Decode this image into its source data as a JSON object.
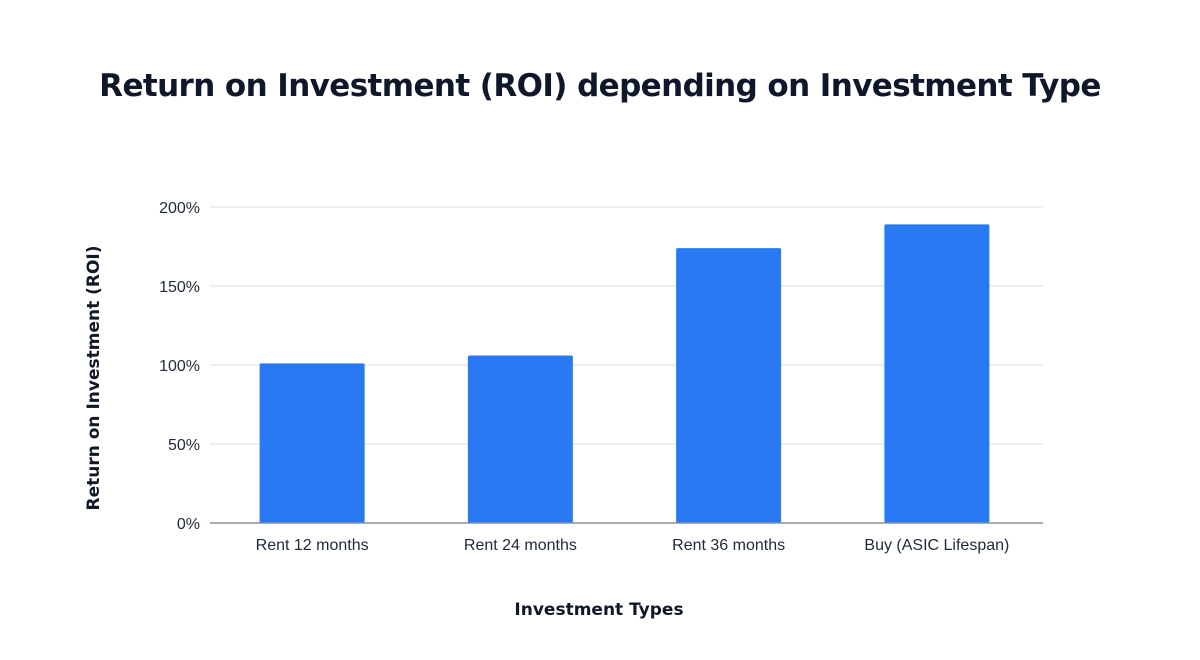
{
  "chart_data": {
    "type": "bar",
    "title": "Return on Investment (ROI) depending on Investment Type",
    "xlabel": "Investment Types",
    "ylabel": "Return on Investment (ROI)",
    "categories": [
      "Rent 12 months",
      "Rent 24 months",
      "Rent 36 months",
      "Buy (ASIC Lifespan)"
    ],
    "values": [
      101,
      106,
      174,
      189
    ],
    "value_unit": "%",
    "ylim": [
      0,
      200
    ],
    "yticks": [
      {
        "value": 0,
        "label": "0%"
      },
      {
        "value": 50,
        "label": "50%"
      },
      {
        "value": 100,
        "label": "100%"
      },
      {
        "value": 150,
        "label": "150%"
      },
      {
        "value": 200,
        "label": "200%"
      }
    ],
    "grid": true,
    "legend": "none",
    "colors": {
      "bar": "#2979f2",
      "grid": "#d8e1ea",
      "axis": "#8a8f98"
    }
  }
}
